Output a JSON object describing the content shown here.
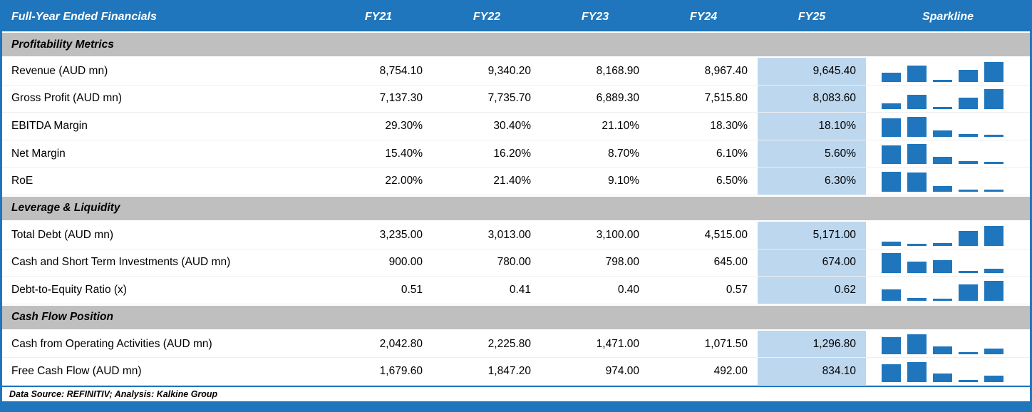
{
  "colors": {
    "header_bg": "#1F76BC",
    "header_text": "#FFFFFF",
    "section_bg": "#BFBFBF",
    "fy25_highlight_bg": "#BDD7EE",
    "spark_bar": "#1F76BC",
    "border": "#1F76BC",
    "text": "#000000"
  },
  "table": {
    "title": "Full-Year Ended Financials",
    "year_columns": [
      "FY21",
      "FY22",
      "FY23",
      "FY24",
      "FY25"
    ],
    "sparkline_header": "Sparkline",
    "sections": [
      {
        "title": "Profitability Metrics",
        "rows": [
          {
            "label": "Revenue (AUD mn)",
            "values": [
              "8,754.10",
              "9,340.20",
              "8,168.90",
              "8,967.40",
              "9,645.40"
            ]
          },
          {
            "label": "Gross Profit (AUD mn)",
            "values": [
              "7,137.30",
              "7,735.70",
              "6,889.30",
              "7,515.80",
              "8,083.60"
            ]
          },
          {
            "label": "EBITDA Margin",
            "values": [
              "29.30%",
              "30.40%",
              "21.10%",
              "18.30%",
              "18.10%"
            ]
          },
          {
            "label": "Net Margin",
            "values": [
              "15.40%",
              "16.20%",
              "8.70%",
              "6.10%",
              "5.60%"
            ]
          },
          {
            "label": "RoE",
            "values": [
              "22.00%",
              "21.40%",
              "9.10%",
              "6.50%",
              "6.30%"
            ]
          }
        ]
      },
      {
        "title": "Leverage & Liquidity",
        "rows": [
          {
            "label": "Total Debt (AUD mn)",
            "values": [
              "3,235.00",
              "3,013.00",
              "3,100.00",
              "4,515.00",
              "5,171.00"
            ]
          },
          {
            "label": "Cash and Short Term Investments (AUD mn)",
            "values": [
              "900.00",
              "780.00",
              "798.00",
              "645.00",
              "674.00"
            ]
          },
          {
            "label": "Debt-to-Equity Ratio (x)",
            "values": [
              "0.51",
              "0.41",
              "0.40",
              "0.57",
              "0.62"
            ]
          }
        ]
      },
      {
        "title": "Cash Flow Position",
        "rows": [
          {
            "label": "Cash from Operating Activities (AUD mn)",
            "values": [
              "2,042.80",
              "2,225.80",
              "1,471.00",
              "1,071.50",
              "1,296.80"
            ]
          },
          {
            "label": "Free Cash Flow (AUD mn)",
            "values": [
              "1,679.60",
              "1,847.20",
              "974.00",
              "492.00",
              "834.10"
            ]
          }
        ]
      }
    ],
    "footer_note": "Data Source: REFINITIV; Analysis: Kalkine Group"
  },
  "chart_data": {
    "type": "table",
    "title": "Full-Year Ended Financials",
    "columns": [
      "FY21",
      "FY22",
      "FY23",
      "FY24",
      "FY25",
      "Sparkline"
    ],
    "highlighted_column": "FY25",
    "sections": [
      {
        "title": "Profitability Metrics",
        "rows": [
          {
            "label": "Revenue (AUD mn)",
            "values": [
              8754.1,
              9340.2,
              8168.9,
              8967.4,
              9645.4
            ]
          },
          {
            "label": "Gross Profit (AUD mn)",
            "values": [
              7137.3,
              7735.7,
              6889.3,
              7515.8,
              8083.6
            ]
          },
          {
            "label": "EBITDA Margin",
            "values": [
              29.3,
              30.4,
              21.1,
              18.3,
              18.1
            ],
            "unit": "%"
          },
          {
            "label": "Net Margin",
            "values": [
              15.4,
              16.2,
              8.7,
              6.1,
              5.6
            ],
            "unit": "%"
          },
          {
            "label": "RoE",
            "values": [
              22.0,
              21.4,
              9.1,
              6.5,
              6.3
            ],
            "unit": "%"
          }
        ]
      },
      {
        "title": "Leverage & Liquidity",
        "rows": [
          {
            "label": "Total Debt (AUD mn)",
            "values": [
              3235.0,
              3013.0,
              3100.0,
              4515.0,
              5171.0
            ]
          },
          {
            "label": "Cash and Short Term Investments (AUD mn)",
            "values": [
              900.0,
              780.0,
              798.0,
              645.0,
              674.0
            ]
          },
          {
            "label": "Debt-to-Equity Ratio (x)",
            "values": [
              0.51,
              0.41,
              0.4,
              0.57,
              0.62
            ]
          }
        ]
      },
      {
        "title": "Cash Flow Position",
        "rows": [
          {
            "label": "Cash from Operating Activities (AUD mn)",
            "values": [
              2042.8,
              2225.8,
              1471.0,
              1071.5,
              1296.8
            ]
          },
          {
            "label": "Free Cash Flow (AUD mn)",
            "values": [
              1679.6,
              1847.2,
              974.0,
              492.0,
              834.1
            ]
          }
        ]
      }
    ],
    "sparkline": {
      "type": "bar",
      "note": "Each row has a 5-bar column sparkline of FY21-FY25 values scaled to the row's min-max range"
    },
    "footer": "Data Source: REFINITIV; Analysis: Kalkine Group"
  }
}
